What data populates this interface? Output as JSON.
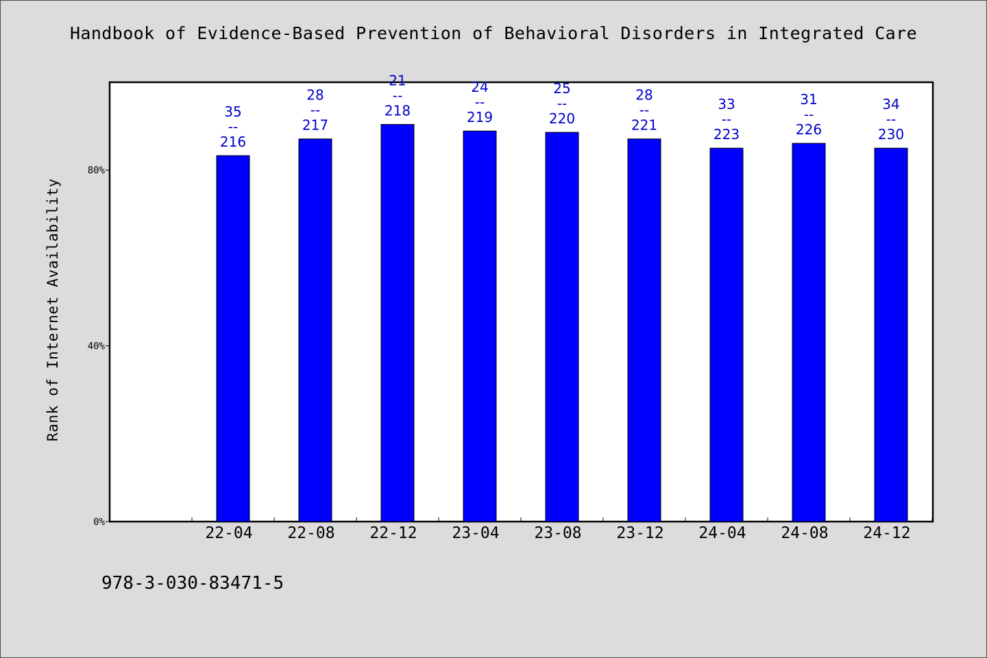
{
  "title": "Handbook of Evidence-Based Prevention of Behavioral Disorders in Integrated Care",
  "footer_code": "978-3-030-83471-5",
  "colors": {
    "bar": "#0000ff",
    "label": "#0000cc",
    "background": "#dcdcdc",
    "plot": "#ffffff"
  },
  "chart_data": {
    "type": "bar",
    "title": "Handbook of Evidence-Based Prevention of Behavioral Disorders in Integrated Care",
    "xlabel": "",
    "ylabel": "Rank of Internet Availability",
    "ylim": [
      0,
      100
    ],
    "yticks": [
      0,
      40,
      80
    ],
    "ytick_labels": [
      "0%",
      "40%",
      "80%"
    ],
    "grid": false,
    "categories": [
      "22-04",
      "22-08",
      "22-12",
      "23-04",
      "23-08",
      "23-12",
      "24-04",
      "24-08",
      "24-12"
    ],
    "values": [
      83.3,
      87.1,
      90.4,
      88.9,
      88.6,
      87.1,
      85.0,
      86.1,
      85.0
    ],
    "labels": [
      [
        "35",
        "--",
        "216"
      ],
      [
        "28",
        "--",
        "217"
      ],
      [
        "21",
        "--",
        "218"
      ],
      [
        "24",
        "--",
        "219"
      ],
      [
        "25",
        "--",
        "220"
      ],
      [
        "28",
        "--",
        "221"
      ],
      [
        "33",
        "--",
        "223"
      ],
      [
        "31",
        "--",
        "226"
      ],
      [
        "34",
        "--",
        "230"
      ]
    ]
  }
}
